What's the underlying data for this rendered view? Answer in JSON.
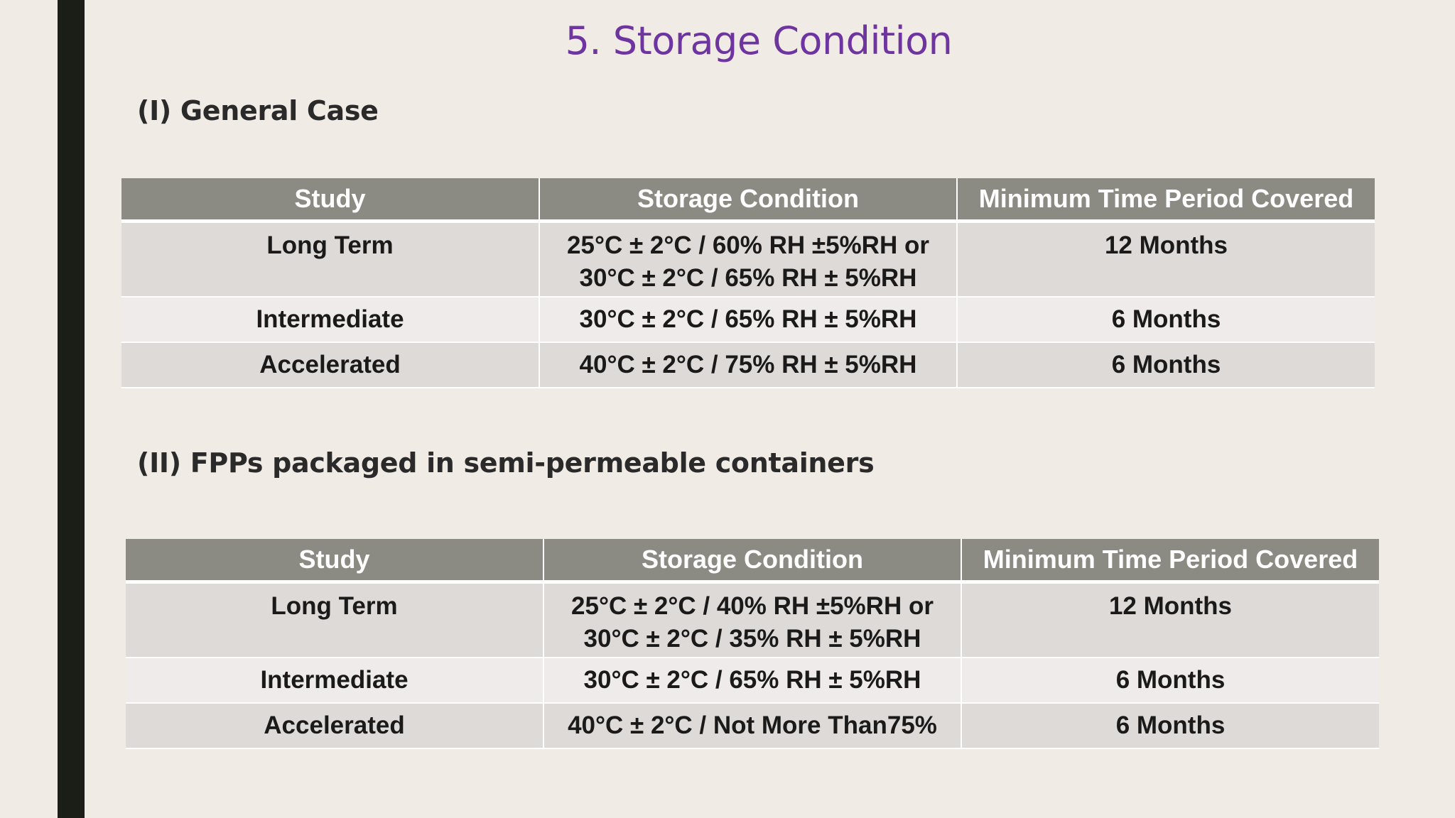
{
  "slide": {
    "title": "5. Storage Condition"
  },
  "sections": [
    {
      "heading": "(I) General Case",
      "columns": [
        "Study",
        "Storage Condition",
        "Minimum Time Period Covered"
      ],
      "rows": [
        {
          "study": "Long Term",
          "condition_line1": "25°C ± 2°C / 60% RH ±5%RH or",
          "condition_line2": "30°C ± 2°C / 65% RH ± 5%RH",
          "period": "12 Months"
        },
        {
          "study": "Intermediate",
          "condition_line1": "30°C ± 2°C / 65% RH ± 5%RH",
          "period": "6 Months"
        },
        {
          "study": "Accelerated",
          "condition_line1": "40°C ± 2°C / 75% RH ± 5%RH",
          "period": "6 Months"
        }
      ]
    },
    {
      "heading": "(II) FPPs packaged in semi-permeable containers",
      "columns": [
        "Study",
        "Storage Condition",
        "Minimum Time Period Covered"
      ],
      "rows": [
        {
          "study": "Long Term",
          "condition_line1": "25°C ± 2°C / 40% RH ±5%RH or",
          "condition_line2": "30°C ± 2°C / 35% RH ± 5%RH",
          "period": "12 Months"
        },
        {
          "study": "Intermediate",
          "condition_line1": "30°C ± 2°C / 65% RH ± 5%RH",
          "period": "6 Months"
        },
        {
          "study": "Accelerated",
          "condition_line1": "40°C ± 2°C / Not More Than75%",
          "period": "6 Months"
        }
      ]
    }
  ],
  "colors": {
    "title": "#6e35a0",
    "header_fill": "#8b8b83",
    "row_dark": "#dddad8",
    "row_light": "#eeebea",
    "background": "#f0ebe5",
    "left_bar": "#1b1d17"
  }
}
